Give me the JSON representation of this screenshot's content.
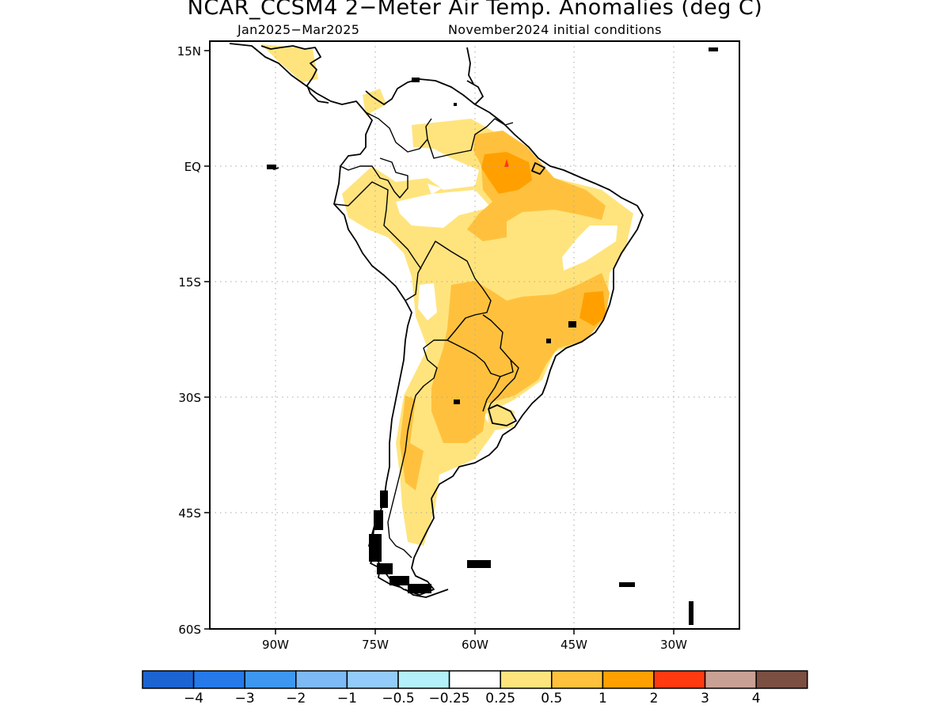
{
  "title": "NCAR_CCSM4 2−Meter Air Temp. Anomalies (deg C)",
  "subtitle_left": "Jan2025−Mar2025",
  "subtitle_right": "November2024 initial conditions",
  "map": {
    "lat_labels": [
      "15N",
      "EQ",
      "15S",
      "30S",
      "45S",
      "60S"
    ],
    "lon_labels": [
      "90W",
      "75W",
      "60W",
      "45W",
      "30W"
    ]
  },
  "colorbar": {
    "colors": [
      "#1c64d2",
      "#2579e8",
      "#3d97f1",
      "#7cb9f5",
      "#93ccfa",
      "#b3f0fa",
      "#ffffff",
      "#ffe47d",
      "#ffc13d",
      "#ffa000",
      "#ff3a10",
      "#c9a094",
      "#7b4f42"
    ],
    "labels": [
      "−4",
      "−3",
      "−2",
      "−1",
      "−0.5",
      "−0.25",
      "0.25",
      "0.5",
      "1",
      "2",
      "3",
      "4"
    ]
  }
}
